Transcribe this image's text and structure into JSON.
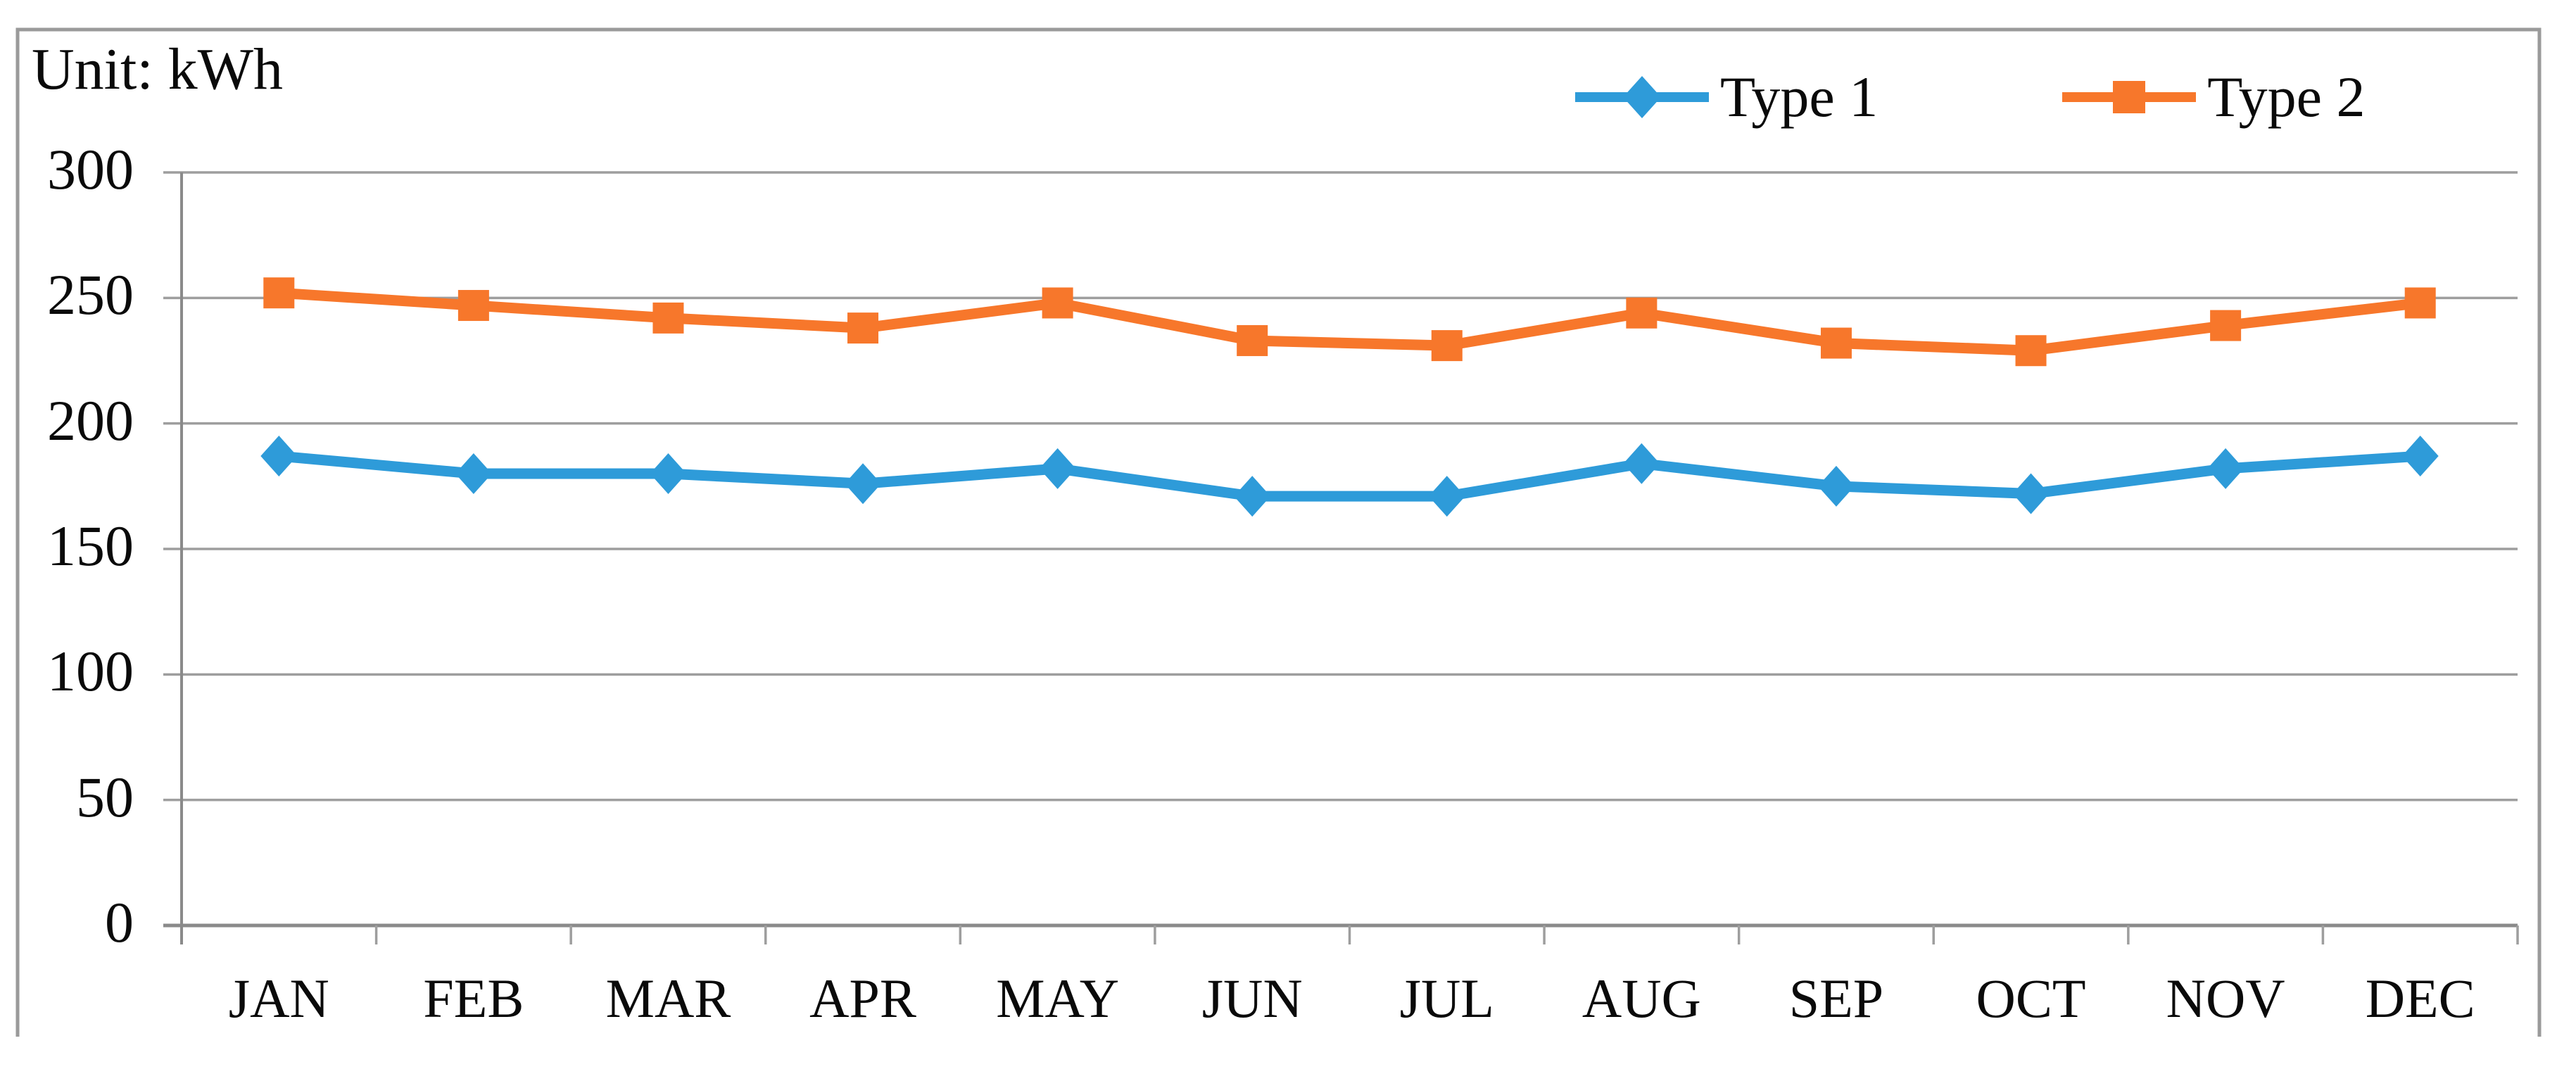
{
  "chart_data": {
    "type": "line",
    "unit_label": "Unit: kWh",
    "categories": [
      "JAN",
      "FEB",
      "MAR",
      "APR",
      "MAY",
      "JUN",
      "JUL",
      "AUG",
      "SEP",
      "OCT",
      "NOV",
      "DEC"
    ],
    "series": [
      {
        "name": "Type 1",
        "color": "#2E9BD9",
        "marker": "diamond",
        "values": [
          187,
          180,
          180,
          176,
          182,
          171,
          171,
          184,
          175,
          172,
          182,
          187
        ]
      },
      {
        "name": "Type 2",
        "color": "#F7772B",
        "marker": "square",
        "values": [
          252,
          247,
          242,
          238,
          248,
          233,
          231,
          244,
          232,
          229,
          239,
          248
        ]
      }
    ],
    "y_axis": {
      "min": 0,
      "max": 300,
      "step": 50,
      "tick_labels": [
        "0",
        "50",
        "100",
        "150",
        "200",
        "250",
        "300"
      ]
    },
    "x_axis": {
      "tick_labels": [
        "JAN",
        "FEB",
        "MAR",
        "APR",
        "MAY",
        "JUN",
        "JUL",
        "AUG",
        "SEP",
        "OCT",
        "NOV",
        "DEC"
      ]
    },
    "grid": true,
    "legend_position": "top-right",
    "colors": {
      "grid_line": "#9E9E9E",
      "axis_line": "#8A8A8A",
      "chart_border": "#9A9A9A",
      "text": "#0a0a0a"
    },
    "ylim": [
      0,
      300
    ]
  }
}
